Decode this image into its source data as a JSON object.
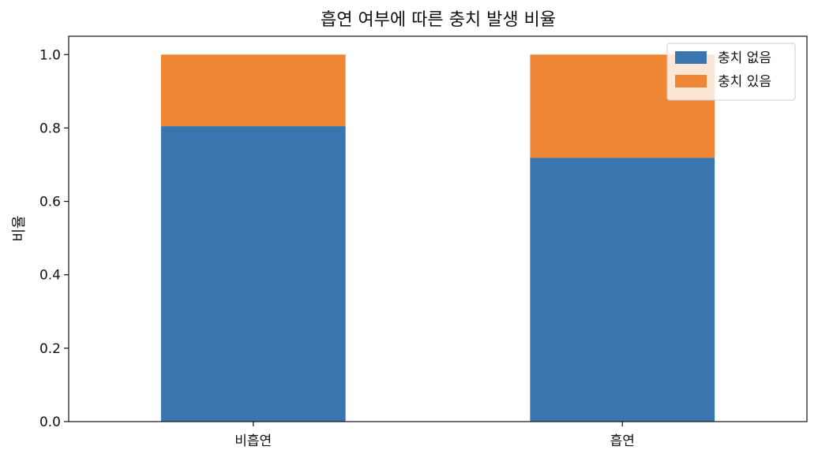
{
  "chart_data": {
    "type": "bar",
    "stacked": true,
    "title": "흡연 여부에 따른 충치 발생 비율",
    "xlabel": "",
    "ylabel": "비율",
    "categories": [
      "비흡연",
      "흡연"
    ],
    "series": [
      {
        "name": "충치 없음",
        "values": [
          0.805,
          0.719
        ],
        "color": "#3b75af"
      },
      {
        "name": "충치 있음",
        "values": [
          0.195,
          0.281
        ],
        "color": "#ef8636"
      }
    ],
    "ylim": [
      0,
      1.05
    ],
    "yticks": [
      "0.0",
      "0.2",
      "0.4",
      "0.6",
      "0.8",
      "1.0"
    ],
    "grid": false,
    "legend": "top-right"
  }
}
